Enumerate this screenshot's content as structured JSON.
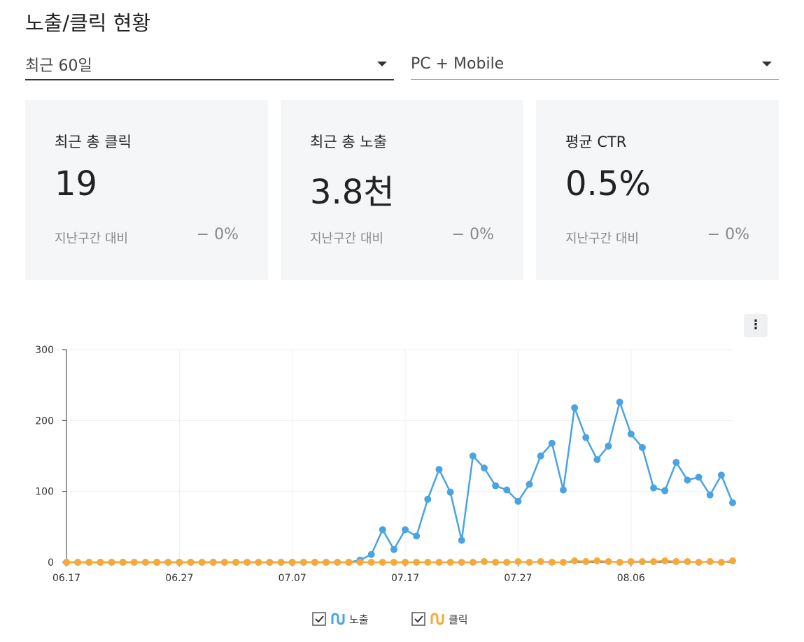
{
  "header": {
    "title": "노출/클릭 현황"
  },
  "filters": [
    {
      "label": "최근 60일"
    },
    {
      "label": "PC + Mobile"
    }
  ],
  "cards": [
    {
      "label": "최근 총 클릭",
      "value": "19",
      "compare_label": "지난구간 대비",
      "change": "− 0%"
    },
    {
      "label": "최근 총 노출",
      "value": "3.8천",
      "compare_label": "지난구간 대비",
      "change": "− 0%"
    },
    {
      "label": "평균 CTR",
      "value": "0.5%",
      "compare_label": "지난구간 대비",
      "change": "− 0%"
    }
  ],
  "chart_data": {
    "type": "line",
    "categories": [
      "06.17",
      null,
      null,
      null,
      null,
      null,
      null,
      null,
      null,
      null,
      "06.27",
      null,
      null,
      null,
      null,
      null,
      null,
      null,
      null,
      null,
      "07.07",
      null,
      null,
      null,
      null,
      null,
      null,
      null,
      null,
      null,
      "07.17",
      null,
      null,
      null,
      null,
      null,
      null,
      null,
      null,
      null,
      "07.27",
      null,
      null,
      null,
      null,
      null,
      null,
      null,
      null,
      null,
      "08.06",
      null,
      null,
      null,
      null,
      null,
      null,
      null,
      null,
      null
    ],
    "series": [
      {
        "name": "노출",
        "color": "#4aa3e3",
        "values": [
          0,
          0,
          0,
          0,
          0,
          0,
          0,
          0,
          0,
          0,
          0,
          0,
          0,
          0,
          0,
          0,
          0,
          0,
          0,
          0,
          0,
          0,
          0,
          0,
          0,
          0,
          3,
          11,
          46,
          18,
          46,
          37,
          89,
          131,
          99,
          31,
          150,
          133,
          108,
          102,
          86,
          110,
          150,
          168,
          102,
          218,
          176,
          145,
          164,
          226,
          181,
          162,
          105,
          101,
          141,
          116,
          120,
          95,
          123,
          84
        ]
      },
      {
        "name": "클릭",
        "color": "#f5a93b",
        "values": [
          0,
          0,
          0,
          0,
          0,
          0,
          0,
          0,
          0,
          0,
          0,
          0,
          0,
          0,
          0,
          0,
          0,
          0,
          0,
          0,
          0,
          0,
          0,
          0,
          0,
          0,
          0,
          0,
          0,
          0,
          0,
          0,
          0,
          0,
          0,
          0,
          0,
          1,
          0,
          0,
          1,
          0,
          1,
          0,
          0,
          2,
          1,
          2,
          1,
          0,
          1,
          1,
          1,
          2,
          1,
          1,
          0,
          1,
          0,
          2
        ]
      }
    ],
    "ylim": [
      0,
      300
    ],
    "yticks": [
      0,
      100,
      200,
      300
    ],
    "grid": true
  }
}
